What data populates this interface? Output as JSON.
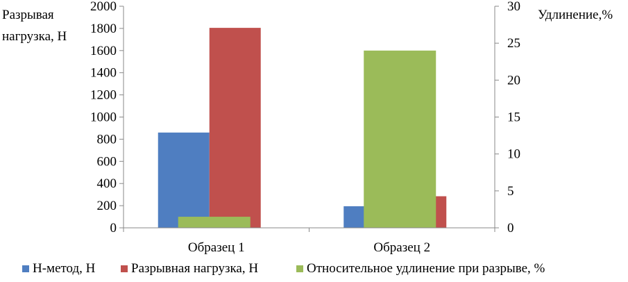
{
  "chart_data": {
    "type": "bar",
    "categories": [
      "Образец 1",
      "Образец 2"
    ],
    "y_left": {
      "label_line1": "Разрывая",
      "label_line2": "нагрузка,  Н",
      "ticks": [
        "0",
        "200",
        "400",
        "600",
        "800",
        "1000",
        "1200",
        "1400",
        "1600",
        "1800",
        "2000"
      ],
      "lim": [
        0,
        2000
      ]
    },
    "y_right": {
      "label": "Удлинение,%",
      "ticks": [
        "0",
        "5",
        "10",
        "15",
        "20",
        "25",
        "30"
      ],
      "lim": [
        0,
        30
      ]
    },
    "series": [
      {
        "name": "Н-метод, Н",
        "axis": "left",
        "color": "#4f7ec1",
        "values": [
          860,
          195
        ]
      },
      {
        "name": "Разрывная нагрузка,  Н",
        "axis": "left",
        "color": "#c0504d",
        "values": [
          1805,
          285
        ]
      },
      {
        "name": "Относительное удлинение  при разрыве, %",
        "axis": "right",
        "color": "#9bbb59",
        "values": [
          1.5,
          24
        ]
      }
    ],
    "grid": false,
    "legend_position": "bottom"
  }
}
